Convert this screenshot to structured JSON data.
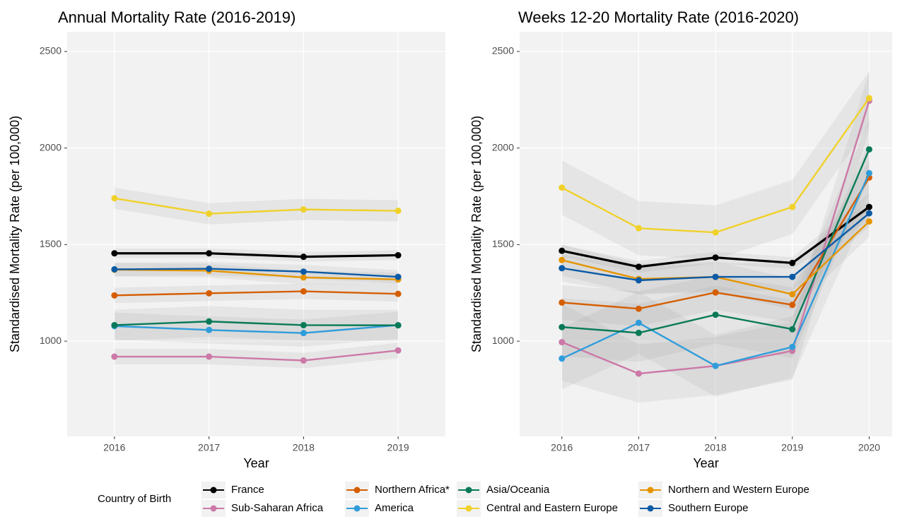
{
  "chart_data": [
    {
      "type": "line",
      "title": "Annual Mortality Rate (2016-2019)",
      "xlabel": "Year",
      "ylabel": "Standardised Mortality Rate (per 100,000)",
      "legend_title": "Country of Birth",
      "x": [
        2016,
        2017,
        2018,
        2019
      ],
      "xlim": [
        2015.5,
        2019.5
      ],
      "xticks": [
        2016,
        2017,
        2018,
        2019
      ],
      "ylim": [
        507,
        2602
      ],
      "yticks": [
        1000,
        1500,
        2000,
        2500
      ],
      "grid": true,
      "series": [
        {
          "name": "France",
          "color": "#000000",
          "values": [
            1455,
            1455,
            1437,
            1445
          ],
          "lower": [
            1430,
            1430,
            1412,
            1420
          ],
          "upper": [
            1480,
            1480,
            1462,
            1470
          ]
        },
        {
          "name": "Sub-Saharan Africa",
          "color": "#cc79a7",
          "values": [
            920,
            920,
            900,
            952
          ],
          "lower": [
            880,
            880,
            860,
            912
          ],
          "upper": [
            960,
            960,
            940,
            992
          ]
        },
        {
          "name": "Northern Africa*",
          "color": "#d55e00",
          "values": [
            1237,
            1248,
            1258,
            1245
          ],
          "lower": [
            1197,
            1208,
            1218,
            1205
          ],
          "upper": [
            1277,
            1288,
            1298,
            1285
          ]
        },
        {
          "name": "America",
          "color": "#2f9ddb",
          "values": [
            1078,
            1058,
            1042,
            1083
          ],
          "lower": [
            1008,
            988,
            972,
            1013
          ],
          "upper": [
            1148,
            1128,
            1112,
            1153
          ]
        },
        {
          "name": "Asia/Oceania",
          "color": "#087a58",
          "values": [
            1083,
            1102,
            1083,
            1082
          ],
          "lower": [
            1003,
            1022,
            1003,
            1002
          ],
          "upper": [
            1163,
            1182,
            1163,
            1162
          ]
        },
        {
          "name": "Central and Eastern Europe",
          "color": "#f0d12a",
          "values": [
            1740,
            1660,
            1682,
            1675
          ],
          "lower": [
            1685,
            1605,
            1627,
            1620
          ],
          "upper": [
            1795,
            1715,
            1737,
            1730
          ]
        },
        {
          "name": "Northern and Western Europe",
          "color": "#e69500",
          "values": [
            1370,
            1365,
            1330,
            1320
          ],
          "lower": [
            1335,
            1330,
            1295,
            1285
          ],
          "upper": [
            1405,
            1400,
            1365,
            1355
          ]
        },
        {
          "name": "Southern Europe",
          "color": "#0b5aa6",
          "values": [
            1372,
            1375,
            1360,
            1333
          ],
          "lower": [
            1337,
            1340,
            1325,
            1298
          ],
          "upper": [
            1407,
            1410,
            1395,
            1368
          ]
        }
      ]
    },
    {
      "type": "line",
      "title": "Weeks 12-20 Mortality Rate (2016-2020)",
      "xlabel": "Year",
      "ylabel": "Standardised Mortality Rate (per 100,000)",
      "x": [
        2016,
        2017,
        2018,
        2019,
        2020
      ],
      "xlim": [
        2015.45,
        2020.3
      ],
      "xticks": [
        2016,
        2017,
        2018,
        2019,
        2020
      ],
      "ylim": [
        507,
        2602
      ],
      "yticks": [
        1000,
        1500,
        2000,
        2500
      ],
      "grid": true,
      "series": [
        {
          "name": "France",
          "color": "#000000",
          "values": [
            1468,
            1385,
            1433,
            1405,
            1695
          ],
          "lower": [
            1438,
            1355,
            1403,
            1375,
            1625
          ],
          "upper": [
            1498,
            1415,
            1463,
            1435,
            1765
          ]
        },
        {
          "name": "Sub-Saharan Africa",
          "color": "#cc79a7",
          "values": [
            995,
            832,
            872,
            950,
            2245
          ],
          "lower": [
            795,
            682,
            722,
            800,
            2095
          ],
          "upper": [
            1195,
            982,
            1022,
            1100,
            2395
          ]
        },
        {
          "name": "Northern Africa*",
          "color": "#d55e00",
          "values": [
            1200,
            1168,
            1252,
            1188,
            1847
          ],
          "lower": [
            1110,
            1078,
            1162,
            1098,
            1757
          ],
          "upper": [
            1290,
            1258,
            1342,
            1278,
            1937
          ]
        },
        {
          "name": "America",
          "color": "#2f9ddb",
          "values": [
            910,
            1095,
            872,
            970,
            1870
          ],
          "lower": [
            750,
            935,
            712,
            810,
            1710
          ],
          "upper": [
            1070,
            1255,
            1032,
            1130,
            2030
          ]
        },
        {
          "name": "Asia/Oceania",
          "color": "#087a58",
          "values": [
            1073,
            1043,
            1137,
            1062,
            1993
          ],
          "lower": [
            923,
            893,
            987,
            912,
            1843
          ],
          "upper": [
            1223,
            1193,
            1287,
            1212,
            2143
          ]
        },
        {
          "name": "Central and Eastern Europe",
          "color": "#f0d12a",
          "values": [
            1795,
            1585,
            1563,
            1695,
            2258
          ],
          "lower": [
            1655,
            1445,
            1423,
            1555,
            2118
          ],
          "upper": [
            1935,
            1725,
            1703,
            1835,
            2398
          ]
        },
        {
          "name": "Northern and Western Europe",
          "color": "#e69500",
          "values": [
            1420,
            1322,
            1333,
            1243,
            1620
          ],
          "lower": [
            1340,
            1242,
            1253,
            1163,
            1540
          ],
          "upper": [
            1500,
            1402,
            1413,
            1323,
            1700
          ]
        },
        {
          "name": "Southern Europe",
          "color": "#0b5aa6",
          "values": [
            1378,
            1315,
            1333,
            1333,
            1662
          ],
          "lower": [
            1308,
            1245,
            1263,
            1263,
            1592
          ],
          "upper": [
            1448,
            1385,
            1403,
            1403,
            1732
          ]
        }
      ]
    }
  ]
}
